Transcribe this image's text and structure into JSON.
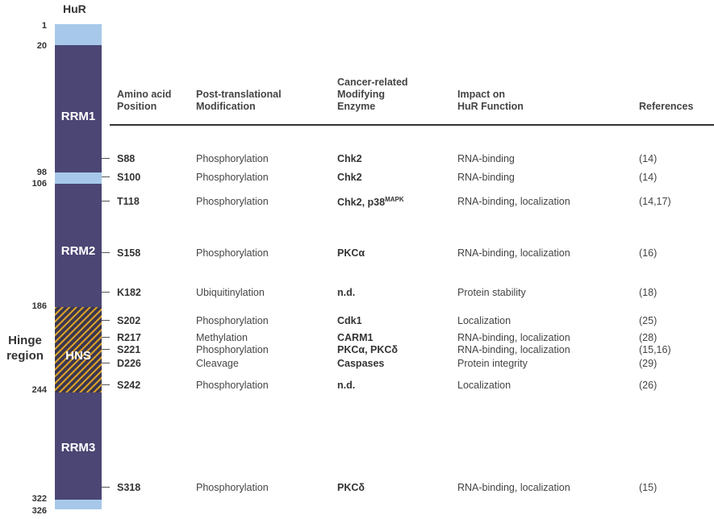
{
  "protein": {
    "name": "HuR",
    "hinge_label": "Hinge region",
    "positions": [
      "1",
      "20",
      "98",
      "106",
      "186",
      "244",
      "322",
      "326"
    ],
    "domains": [
      "RRM1",
      "RRM2",
      "HNS",
      "RRM3"
    ]
  },
  "colors": {
    "light_segment": "#a7c8ea",
    "dark_segment": "#4c4674",
    "hatch_stripe": "#d7a12a"
  },
  "headers": {
    "position_line1": "Amino acid",
    "position_line2": "Position",
    "modification_line1": "Post-translational",
    "modification_line2": "Modification",
    "enzyme_line1": "Cancer-related",
    "enzyme_line2": "Modifying",
    "enzyme_line3": "Enzyme",
    "impact_line1": "Impact on",
    "impact_line2": "HuR Function",
    "references": "References"
  },
  "rows": [
    {
      "position": "S88",
      "modification": "Phosphorylation",
      "enzyme": "Chk2",
      "impact": "RNA-binding",
      "references": "(14)"
    },
    {
      "position": "S100",
      "modification": "Phosphorylation",
      "enzyme": "Chk2",
      "impact": "RNA-binding",
      "references": "(14)"
    },
    {
      "position": "T118",
      "modification": "Phosphorylation",
      "enzyme": "Chk2, p38",
      "enzyme_sup": "MAPK",
      "impact": "RNA-binding, localization",
      "references": "(14,17)"
    },
    {
      "position": "S158",
      "modification": "Phosphorylation",
      "enzyme": "PKCα",
      "impact": "RNA-binding, localization",
      "references": "(16)"
    },
    {
      "position": "K182",
      "modification": "Ubiquitinylation",
      "enzyme": "n.d.",
      "impact": "Protein stability",
      "references": "(18)"
    },
    {
      "position": "S202",
      "modification": "Phosphorylation",
      "enzyme": "Cdk1",
      "impact": "Localization",
      "references": "(25)"
    },
    {
      "position": "R217",
      "modification": "Methylation",
      "enzyme": "CARM1",
      "impact": "RNA-binding, localization",
      "references": "(28)"
    },
    {
      "position": "S221",
      "modification": "Phosphorylation",
      "enzyme": "PKCα, PKCδ",
      "impact": "RNA-binding, localization",
      "references": "(15,16)"
    },
    {
      "position": "D226",
      "modification": "Cleavage",
      "enzyme": "Caspases",
      "impact": "Protein integrity",
      "references": "(29)"
    },
    {
      "position": "S242",
      "modification": "Phosphorylation",
      "enzyme": "n.d.",
      "impact": "Localization",
      "references": "(26)"
    },
    {
      "position": "S318",
      "modification": "Phosphorylation",
      "enzyme": "PKCδ",
      "impact": "RNA-binding, localization",
      "references": "(15)"
    }
  ]
}
